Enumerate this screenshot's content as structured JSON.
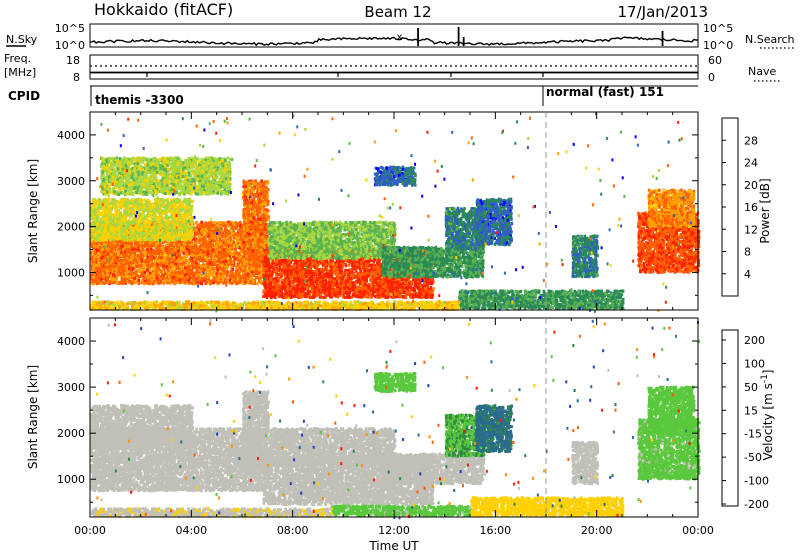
{
  "header": {
    "title": "Hokkaido (fitACF)",
    "beam": "Beam 12",
    "date": "17/Jan/2013"
  },
  "top_panels": {
    "nsky": {
      "label": "N.Sky",
      "left_ticks": [
        "10^5",
        "10^0"
      ],
      "right_ticks": [
        "10^5",
        "10^0"
      ],
      "right_label": "N.Search",
      "spikes": [
        {
          "t": 12.95,
          "h": 0.9
        },
        {
          "t": 14.55,
          "h": 0.95
        },
        {
          "t": 14.75,
          "h": 0.45
        },
        {
          "t": 22.6,
          "h": 0.75
        }
      ],
      "marker_text": "x",
      "marker_t": 12.1
    },
    "freq": {
      "label_top": "Freq.",
      "label_unit": "[MHz]",
      "left_ticks": [
        "18",
        "8"
      ],
      "right_ticks": [
        "60",
        "0"
      ],
      "right_label": "Nave"
    },
    "cpid": {
      "label": "CPID",
      "program_1": "themis -3300",
      "program_2": "normal (fast) 151",
      "program_2_start": 18.0
    }
  },
  "colors": {
    "power": [
      "#0000ff",
      "#3060c0",
      "#2a8a55",
      "#5bb250",
      "#a8d840",
      "#ffd000",
      "#ffa000",
      "#ff6000",
      "#ff2000"
    ],
    "velocity": [
      "#2040c0",
      "#2a6c8c",
      "#2e8a40",
      "#5ac83c",
      "#c0c0b8",
      "#ffd000",
      "#ff9000",
      "#ff5a00",
      "#ff1a00"
    ],
    "background": "#ffffff"
  },
  "chart_data": [
    {
      "type": "heatmap",
      "title": "",
      "xlabel": "Time UT",
      "ylabel": "Slant Range [km]",
      "colorbar_label": "Power [dB]",
      "colorbar_ticks": [
        4,
        8,
        12,
        16,
        20,
        24,
        28
      ],
      "colorbar_range": [
        0,
        32
      ],
      "x_range": [
        0,
        24
      ],
      "y_range": [
        180,
        4500
      ],
      "x_ticks": [
        "00:00",
        "04:00",
        "08:00",
        "12:00",
        "16:00",
        "20:00",
        "00:00"
      ],
      "y_ticks": [
        1000,
        2000,
        3000,
        4000
      ],
      "regions": [
        {
          "t0": 0.0,
          "t1": 6.8,
          "r0": 750,
          "r1": 2100,
          "value": 26
        },
        {
          "t0": 0.0,
          "t1": 4.0,
          "r0": 1700,
          "r1": 2600,
          "value": 18
        },
        {
          "t0": 0.4,
          "t1": 5.5,
          "r0": 2700,
          "r1": 3500,
          "value": 16
        },
        {
          "t0": 6.0,
          "t1": 7.0,
          "r0": 1200,
          "r1": 3000,
          "value": 26
        },
        {
          "t0": 6.8,
          "t1": 13.5,
          "r0": 450,
          "r1": 1500,
          "value": 29
        },
        {
          "t0": 7.0,
          "t1": 12.0,
          "r0": 1300,
          "r1": 2100,
          "value": 14
        },
        {
          "t0": 11.5,
          "t1": 15.5,
          "r0": 900,
          "r1": 1550,
          "value": 10
        },
        {
          "t0": 14.0,
          "t1": 15.5,
          "r0": 1500,
          "r1": 2400,
          "value": 8
        },
        {
          "t0": 15.2,
          "t1": 16.6,
          "r0": 1600,
          "r1": 2600,
          "value": 6
        },
        {
          "t0": 19.0,
          "t1": 20.0,
          "r0": 900,
          "r1": 1800,
          "value": 8
        },
        {
          "t0": 21.6,
          "t1": 24.0,
          "r0": 1000,
          "r1": 2300,
          "value": 28
        },
        {
          "t0": 22.0,
          "t1": 23.8,
          "r0": 2000,
          "r1": 2800,
          "value": 24
        },
        {
          "t0": 14.5,
          "t1": 21.0,
          "r0": 200,
          "r1": 600,
          "value": 10
        },
        {
          "t0": 0.0,
          "t1": 14.5,
          "r0": 190,
          "r1": 360,
          "value": 20
        },
        {
          "t0": 11.2,
          "t1": 12.8,
          "r0": 2900,
          "r1": 3300,
          "value": 6
        }
      ]
    },
    {
      "type": "heatmap",
      "title": "",
      "xlabel": "Time UT",
      "ylabel": "Slant Range [km]",
      "colorbar_label": "Velocity [m s^-1]",
      "colorbar_ticks": [
        200,
        100,
        50,
        15,
        -15,
        -50,
        -100,
        -200
      ],
      "colorbar_range": [
        -250,
        250
      ],
      "x_range": [
        0,
        24
      ],
      "y_range": [
        180,
        4500
      ],
      "x_ticks": [
        "00:00",
        "04:00",
        "08:00",
        "12:00",
        "16:00",
        "20:00",
        "00:00"
      ],
      "y_ticks": [
        1000,
        2000,
        3000,
        4000
      ],
      "regions": [
        {
          "t0": 0.0,
          "t1": 6.8,
          "r0": 750,
          "r1": 2100,
          "value": 0
        },
        {
          "t0": 0.0,
          "t1": 4.0,
          "r0": 1700,
          "r1": 2600,
          "value": 0
        },
        {
          "t0": 6.0,
          "t1": 7.0,
          "r0": 1200,
          "r1": 2900,
          "value": 0
        },
        {
          "t0": 6.8,
          "t1": 13.5,
          "r0": 450,
          "r1": 1500,
          "value": 0
        },
        {
          "t0": 7.0,
          "t1": 12.0,
          "r0": 1300,
          "r1": 2100,
          "value": 0
        },
        {
          "t0": 11.5,
          "t1": 15.5,
          "r0": 900,
          "r1": 1550,
          "value": 5
        },
        {
          "t0": 14.0,
          "t1": 15.5,
          "r0": 1500,
          "r1": 2400,
          "value": 80
        },
        {
          "t0": 15.2,
          "t1": 16.6,
          "r0": 1600,
          "r1": 2600,
          "value": 150
        },
        {
          "t0": 19.0,
          "t1": 20.0,
          "r0": 900,
          "r1": 1800,
          "value": 0
        },
        {
          "t0": 21.6,
          "t1": 24.0,
          "r0": 1000,
          "r1": 2300,
          "value": 40
        },
        {
          "t0": 22.0,
          "t1": 23.8,
          "r0": 2000,
          "r1": 3000,
          "value": 45
        },
        {
          "t0": 9.5,
          "t1": 15.0,
          "r0": 200,
          "r1": 420,
          "value": 40
        },
        {
          "t0": 15.0,
          "t1": 21.0,
          "r0": 200,
          "r1": 600,
          "value": -60
        },
        {
          "t0": 0.0,
          "t1": 9.5,
          "r0": 190,
          "r1": 360,
          "value": -20
        },
        {
          "t0": 11.2,
          "t1": 12.8,
          "r0": 2900,
          "r1": 3300,
          "value": 50
        }
      ]
    }
  ]
}
